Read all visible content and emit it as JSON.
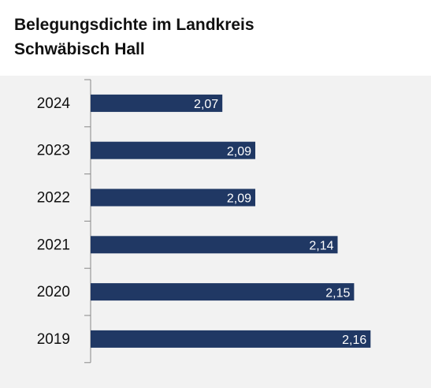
{
  "chart_data": {
    "type": "bar",
    "orientation": "horizontal",
    "title": "Belegungsdichte im Landkreis Schwäbisch Hall",
    "categories": [
      "2024",
      "2023",
      "2022",
      "2021",
      "2020",
      "2019"
    ],
    "values": [
      2.07,
      2.09,
      2.09,
      2.14,
      2.15,
      2.16
    ],
    "value_labels": [
      "2,07",
      "2,09",
      "2,09",
      "2,14",
      "2,15",
      "2,16"
    ],
    "color": "#203864",
    "xlim": [
      1.99,
      2.19
    ]
  }
}
